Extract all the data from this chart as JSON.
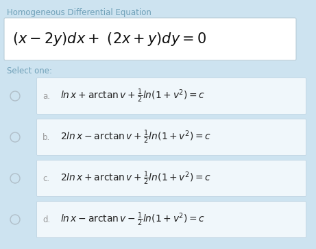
{
  "bg_color": "#cde3f0",
  "title_text": "Homogeneous Differential Equation",
  "title_color": "#6fa0b8",
  "title_fontsize": 8.5,
  "equation_box_color": "#ffffff",
  "equation_box_border": "#b8cdd8",
  "equation_text": "$(x - 2y)dx +\\ (2x + y)dy = 0$",
  "equation_fontsize": 15,
  "select_text": "Select one:",
  "select_color": "#6fa0b8",
  "select_fontsize": 8.5,
  "options": [
    {
      "label": "a.",
      "formula": "$\\mathit{ln}\\, x + \\mathrm{arctan}\\, v + \\frac{1}{2}\\mathit{ln}(1 + v^2) = c$"
    },
    {
      "label": "b.",
      "formula": "$2\\mathit{ln}\\, x - \\mathrm{arctan}\\, v + \\frac{1}{2}\\mathit{ln}(1 + v^2) = c$"
    },
    {
      "label": "c.",
      "formula": "$2\\mathit{ln}\\, x + \\mathrm{arctan}\\, v + \\frac{1}{2}\\mathit{ln}(1 + v^2) = c$"
    },
    {
      "label": "d.",
      "formula": "$\\mathit{ln}\\, x - \\mathrm{arctan}\\, v - \\frac{1}{2}\\mathit{ln}(1 + v^2) = c$"
    }
  ],
  "option_box_color": "#f0f7fb",
  "option_box_border": "#c0d5e3",
  "option_label_color": "#999999",
  "option_formula_color": "#222222",
  "option_fontsize": 10,
  "radio_color": "#b0bec8",
  "fig_width": 4.61,
  "fig_height": 3.63,
  "dpi": 100
}
